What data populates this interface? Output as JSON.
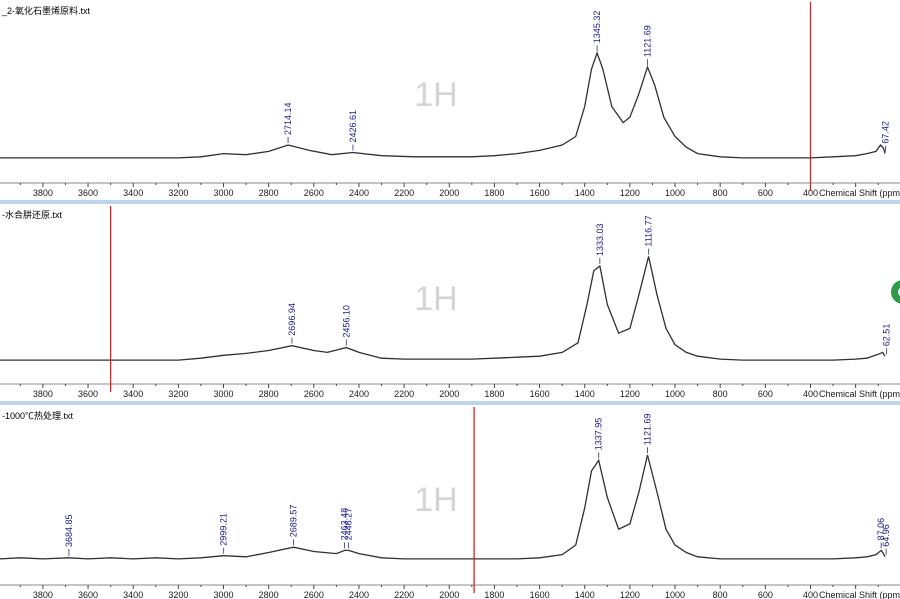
{
  "chart_data": [
    {
      "type": "line",
      "title": "_2-氧化石墨烯原料.txt",
      "watermark": "1H",
      "xlabel": "Chemical Shift (ppm",
      "x_reversed": true,
      "xlim": [
        3990,
        70
      ],
      "x_ticks": [
        3800,
        3600,
        3400,
        3200,
        3000,
        2800,
        2600,
        2400,
        2200,
        2000,
        1800,
        1600,
        1400,
        1200,
        1000,
        800,
        600,
        400
      ],
      "cursor_x": 400,
      "grid": false,
      "series": [
        {
          "x": [
            3990,
            3800,
            3600,
            3400,
            3200,
            3100,
            3000,
            2900,
            2800,
            2714,
            2620,
            2520,
            2427,
            2300,
            2150,
            2000,
            1900,
            1800,
            1700,
            1600,
            1500,
            1440,
            1400,
            1370,
            1345,
            1320,
            1280,
            1230,
            1200,
            1160,
            1122,
            1090,
            1050,
            1000,
            950,
            900,
            800,
            700,
            600,
            500,
            400,
            300,
            200,
            150,
            110,
            90,
            80,
            75,
            70
          ],
          "y": [
            0.02,
            0.02,
            0.02,
            0.02,
            0.02,
            0.03,
            0.06,
            0.05,
            0.08,
            0.14,
            0.09,
            0.05,
            0.07,
            0.04,
            0.03,
            0.03,
            0.03,
            0.04,
            0.06,
            0.09,
            0.14,
            0.22,
            0.5,
            0.85,
            1.0,
            0.85,
            0.5,
            0.35,
            0.4,
            0.62,
            0.87,
            0.7,
            0.4,
            0.22,
            0.12,
            0.06,
            0.03,
            0.02,
            0.02,
            0.02,
            0.02,
            0.03,
            0.04,
            0.06,
            0.08,
            0.14,
            0.12,
            0.1,
            0.06
          ]
        }
      ],
      "peak_labels": [
        {
          "x": 2714.14,
          "text": "2714.14"
        },
        {
          "x": 2426.61,
          "text": "2426.61"
        },
        {
          "x": 1345.32,
          "text": "1345.32"
        },
        {
          "x": 1121.69,
          "text": "1121.69"
        },
        {
          "x": 67.42,
          "text": "67.42"
        }
      ]
    },
    {
      "type": "line",
      "title": "-水合肼还原.txt",
      "watermark": "1H",
      "xlabel": "Chemical Shift (ppm",
      "x_reversed": true,
      "xlim": [
        3990,
        70
      ],
      "x_ticks": [
        3800,
        3600,
        3400,
        3200,
        3000,
        2800,
        2600,
        2400,
        2200,
        2000,
        1800,
        1600,
        1400,
        1200,
        1000,
        800,
        600,
        400
      ],
      "cursor_x": 3500,
      "grid": false,
      "series": [
        {
          "x": [
            3990,
            3800,
            3600,
            3400,
            3200,
            3100,
            3000,
            2900,
            2800,
            2697,
            2600,
            2540,
            2456,
            2400,
            2300,
            2200,
            2000,
            1900,
            1800,
            1700,
            1600,
            1500,
            1430,
            1390,
            1360,
            1333,
            1300,
            1250,
            1200,
            1160,
            1117,
            1080,
            1040,
            1000,
            950,
            900,
            800,
            700,
            600,
            500,
            400,
            300,
            200,
            150,
            100,
            80,
            70
          ],
          "y": [
            0.02,
            0.02,
            0.02,
            0.02,
            0.02,
            0.04,
            0.07,
            0.09,
            0.12,
            0.17,
            0.12,
            0.1,
            0.15,
            0.1,
            0.04,
            0.03,
            0.03,
            0.03,
            0.04,
            0.05,
            0.06,
            0.1,
            0.2,
            0.6,
            0.95,
            1.0,
            0.6,
            0.3,
            0.35,
            0.7,
            1.1,
            0.7,
            0.35,
            0.18,
            0.1,
            0.06,
            0.03,
            0.02,
            0.02,
            0.02,
            0.02,
            0.02,
            0.03,
            0.04,
            0.08,
            0.1,
            0.06
          ]
        }
      ],
      "peak_labels": [
        {
          "x": 2696.94,
          "text": "2696.94"
        },
        {
          "x": 2456.1,
          "text": "2456.10"
        },
        {
          "x": 1333.03,
          "text": "1333.03"
        },
        {
          "x": 1116.77,
          "text": "1116.77"
        },
        {
          "x": 62.51,
          "text": "62.51"
        }
      ]
    },
    {
      "type": "line",
      "title": "-1000℃热处理.txt",
      "watermark": "1H",
      "xlabel": "Chemical Shift (ppm",
      "x_reversed": true,
      "xlim": [
        3990,
        70
      ],
      "x_ticks": [
        3800,
        3600,
        3400,
        3200,
        3000,
        2800,
        2600,
        2400,
        2200,
        2000,
        1800,
        1600,
        1400,
        1200,
        1000,
        800,
        600,
        400
      ],
      "cursor_x": 1890,
      "grid": false,
      "series": [
        {
          "x": [
            3990,
            3900,
            3800,
            3685,
            3600,
            3500,
            3400,
            3300,
            3200,
            3100,
            2999,
            2900,
            2800,
            2690,
            2600,
            2500,
            2463,
            2446,
            2400,
            2300,
            2200,
            2100,
            2000,
            1900,
            1800,
            1700,
            1600,
            1500,
            1440,
            1400,
            1370,
            1338,
            1300,
            1250,
            1200,
            1160,
            1122,
            1080,
            1040,
            1000,
            950,
            900,
            800,
            700,
            600,
            500,
            400,
            300,
            200,
            150,
            110,
            87,
            80,
            75,
            70
          ],
          "y": [
            0.02,
            0.03,
            0.02,
            0.03,
            0.02,
            0.03,
            0.02,
            0.03,
            0.02,
            0.03,
            0.05,
            0.04,
            0.08,
            0.13,
            0.09,
            0.07,
            0.1,
            0.1,
            0.07,
            0.03,
            0.02,
            0.02,
            0.02,
            0.02,
            0.02,
            0.02,
            0.03,
            0.06,
            0.15,
            0.5,
            0.85,
            0.95,
            0.6,
            0.3,
            0.35,
            0.65,
            1.0,
            0.65,
            0.3,
            0.15,
            0.08,
            0.04,
            0.02,
            0.02,
            0.02,
            0.02,
            0.02,
            0.02,
            0.03,
            0.04,
            0.06,
            0.1,
            0.08,
            0.06,
            0.04
          ]
        }
      ],
      "peak_labels": [
        {
          "x": 3684.85,
          "text": "3684.85"
        },
        {
          "x": 2999.21,
          "text": "2999.21"
        },
        {
          "x": 2689.57,
          "text": "2689.57"
        },
        {
          "x": 2463.48,
          "text": "2463.48"
        },
        {
          "x": 2446.27,
          "text": "2446.27"
        },
        {
          "x": 1337.95,
          "text": "1337.95"
        },
        {
          "x": 1121.69,
          "text": "1121.69"
        },
        {
          "x": 87.06,
          "text": "87.06"
        },
        {
          "x": 64.96,
          "text": "64.96"
        }
      ]
    }
  ],
  "colors": {
    "spectrum": "#303030",
    "cursor": "#e02020",
    "peak_label": "#1a1a8c",
    "watermark": "#d4d4d4",
    "separator": "#bcd4ec",
    "edge_widget": "#2e9a4a"
  },
  "edge_widget_icon": "green-circle-icon"
}
